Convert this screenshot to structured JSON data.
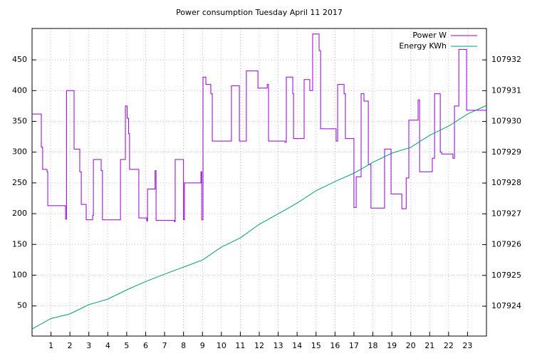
{
  "chart_data": {
    "type": "line",
    "steps": true,
    "title": "Power consumption Tuesday April 11 2017",
    "xlim": [
      0,
      24
    ],
    "xticks": [
      1,
      2,
      3,
      4,
      5,
      6,
      7,
      8,
      9,
      10,
      11,
      12,
      13,
      14,
      15,
      16,
      17,
      18,
      19,
      20,
      21,
      22,
      23
    ],
    "ylim": [
      1,
      501
    ],
    "yticks": [
      50,
      100,
      150,
      200,
      250,
      300,
      350,
      400,
      450
    ],
    "y2lim": [
      107923.03,
      107933.02
    ],
    "y2ticks": [
      107924,
      107925,
      107926,
      107927,
      107928,
      107929,
      107930,
      107931,
      107932
    ],
    "grid": true,
    "legend": "top-right",
    "series": [
      {
        "name": "Power W",
        "color": "#9400d3",
        "x": [
          0,
          0.49,
          0.56,
          0.79,
          0.83,
          1.77,
          1.82,
          2.22,
          2.52,
          2.6,
          2.86,
          3.2,
          3.24,
          3.65,
          3.72,
          4.67,
          4.93,
          5.02,
          5.1,
          5.15,
          5.64,
          6.06,
          6.1,
          6.5,
          6.55,
          7.52,
          7.56,
          8.0,
          8.05,
          8.92,
          8.96,
          9.03,
          9.18,
          9.44,
          9.52,
          10.53,
          10.95,
          11.32,
          11.93,
          12.42,
          12.49,
          13.36,
          13.43,
          13.77,
          13.81,
          14.37,
          14.67,
          14.82,
          15.16,
          15.24,
          16.06,
          16.14,
          16.48,
          16.55,
          17.0,
          17.12,
          17.38,
          17.53,
          17.76,
          17.9,
          18.62,
          18.96,
          19.53,
          19.76,
          19.9,
          20.39,
          20.47,
          21.14,
          21.26,
          21.56,
          21.63,
          22.23,
          22.31,
          22.54,
          22.95,
          24
        ],
        "values": [
          362,
          308,
          272,
          268,
          213,
          191,
          400,
          305,
          268,
          215,
          190,
          197,
          288,
          270,
          190,
          288,
          375,
          355,
          330,
          272,
          193,
          188,
          240,
          270,
          189,
          187,
          288,
          190,
          250,
          268,
          190,
          422,
          410,
          395,
          318,
          408,
          318,
          432,
          404,
          410,
          318,
          316,
          422,
          395,
          322,
          418,
          400,
          492,
          465,
          338,
          318,
          410,
          395,
          322,
          210,
          260,
          395,
          383,
          280,
          209,
          305,
          232,
          208,
          258,
          352,
          385,
          268,
          290,
          395,
          300,
          297,
          290,
          375,
          467,
          368,
          368
        ]
      },
      {
        "name": "Energy KWh",
        "color": "#009e73",
        "axis": "y2",
        "x": [
          0,
          1,
          2,
          3,
          4,
          5,
          6,
          7,
          8,
          9,
          10,
          11,
          12,
          13,
          14,
          15,
          16,
          17,
          18,
          19,
          20,
          21,
          22,
          23,
          24
        ],
        "values": [
          107923.26,
          107923.6,
          107923.75,
          107924.05,
          107924.23,
          107924.53,
          107924.8,
          107925.04,
          107925.27,
          107925.5,
          107925.92,
          107926.22,
          107926.66,
          107927.0,
          107927.35,
          107927.75,
          107928.05,
          107928.32,
          107928.67,
          107928.97,
          107929.16,
          107929.55,
          107929.85,
          107930.24,
          107930.52
        ]
      }
    ]
  }
}
